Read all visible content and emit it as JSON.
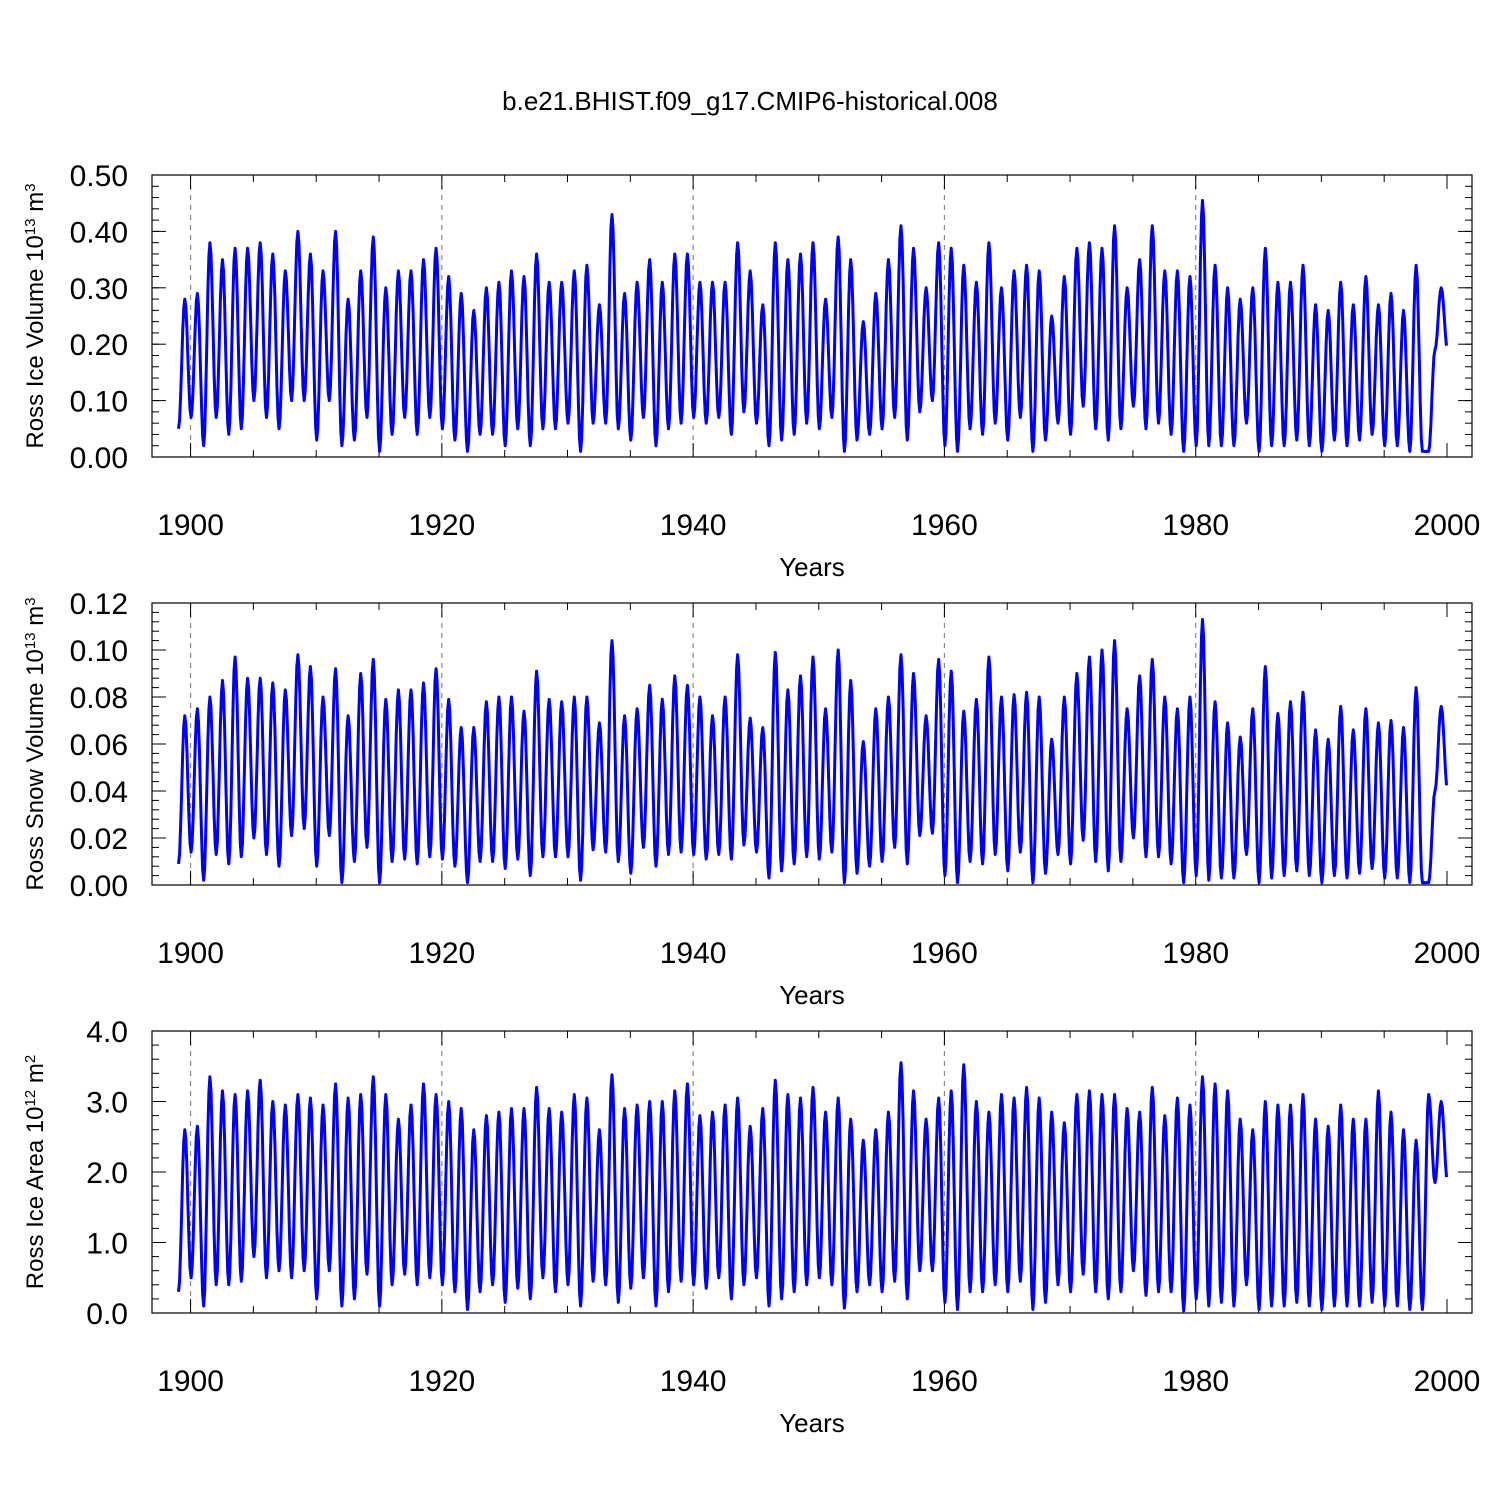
{
  "title": "b.e21.BHIST.f09_g17.CMIP6-historical.008",
  "chart_data": [
    {
      "type": "line",
      "ylabel": {
        "text": "Ross Ice Volume 10",
        "exp": "13",
        "unit": " m",
        "unit_exp": "3"
      },
      "xlabel": "Years",
      "xlim": [
        1899,
        2000
      ],
      "ylim": [
        0.0,
        0.5
      ],
      "xticks": [
        1900,
        1920,
        1940,
        1960,
        1980,
        2000
      ],
      "yticks": [
        "0.00",
        "0.10",
        "0.20",
        "0.30",
        "0.40",
        "0.50"
      ],
      "ytick_values": [
        0.0,
        0.1,
        0.2,
        0.3,
        0.4,
        0.5
      ],
      "minor_y_step": 0.02,
      "vgrid_years": [
        1900,
        1920,
        1940,
        1960,
        1980
      ],
      "series": [
        {
          "name": "Ross Ice Volume",
          "color": "#0000ff",
          "start_year": 1899,
          "base": 0.07,
          "peaks": [
            0.28,
            0.29,
            0.38,
            0.35,
            0.37,
            0.37,
            0.38,
            0.36,
            0.33,
            0.4,
            0.36,
            0.33,
            0.4,
            0.28,
            0.33,
            0.39,
            0.3,
            0.33,
            0.33,
            0.35,
            0.37,
            0.32,
            0.29,
            0.26,
            0.3,
            0.31,
            0.33,
            0.32,
            0.36,
            0.31,
            0.31,
            0.33,
            0.34,
            0.27,
            0.43,
            0.29,
            0.31,
            0.35,
            0.31,
            0.36,
            0.36,
            0.31,
            0.31,
            0.31,
            0.38,
            0.33,
            0.27,
            0.38,
            0.35,
            0.36,
            0.38,
            0.28,
            0.39,
            0.35,
            0.24,
            0.29,
            0.35,
            0.41,
            0.37,
            0.3,
            0.38,
            0.37,
            0.34,
            0.31,
            0.38,
            0.3,
            0.33,
            0.34,
            0.33,
            0.25,
            0.32,
            0.37,
            0.38,
            0.37,
            0.41,
            0.3,
            0.35,
            0.41,
            0.33,
            0.33,
            0.32,
            0.455,
            0.34,
            0.3,
            0.28,
            0.3,
            0.37,
            0.31,
            0.31,
            0.34,
            0.27,
            0.26,
            0.31,
            0.27,
            0.32,
            0.27,
            0.29,
            0.26,
            0.34,
            0.01,
            0.3
          ],
          "troughs": [
            0.05,
            0.07,
            0.02,
            0.07,
            0.04,
            0.05,
            0.1,
            0.07,
            0.05,
            0.1,
            0.1,
            0.03,
            0.1,
            0.02,
            0.03,
            0.07,
            0.01,
            0.04,
            0.07,
            0.04,
            0.07,
            0.05,
            0.03,
            0.01,
            0.04,
            0.04,
            0.02,
            0.05,
            0.02,
            0.05,
            0.05,
            0.06,
            0.01,
            0.06,
            0.06,
            0.05,
            0.03,
            0.07,
            0.02,
            0.05,
            0.06,
            0.07,
            0.06,
            0.07,
            0.04,
            0.08,
            0.06,
            0.02,
            0.03,
            0.04,
            0.06,
            0.05,
            0.07,
            0.01,
            0.03,
            0.04,
            0.05,
            0.07,
            0.03,
            0.08,
            0.1,
            0.02,
            0.01,
            0.05,
            0.04,
            0.06,
            0.03,
            0.07,
            0.01,
            0.03,
            0.06,
            0.04,
            0.09,
            0.05,
            0.03,
            0.05,
            0.09,
            0.05,
            0.06,
            0.04,
            0.01,
            0.02,
            0.02,
            0.02,
            0.02,
            0.06,
            0.01,
            0.02,
            0.02,
            0.03,
            0.02,
            0.01,
            0.03,
            0.02,
            0.03,
            0.04,
            0.02,
            0.02,
            0.01,
            0.01,
            0.19
          ]
        }
      ]
    },
    {
      "type": "line",
      "ylabel": {
        "text": "Ross Snow Volume 10",
        "exp": "13",
        "unit": " m",
        "unit_exp": "3"
      },
      "xlabel": "Years",
      "xlim": [
        1899,
        2000
      ],
      "ylim": [
        0.0,
        0.12
      ],
      "xticks": [
        1900,
        1920,
        1940,
        1960,
        1980,
        2000
      ],
      "yticks": [
        "0.00",
        "0.02",
        "0.04",
        "0.06",
        "0.08",
        "0.10",
        "0.12"
      ],
      "ytick_values": [
        0.0,
        0.02,
        0.04,
        0.06,
        0.08,
        0.1,
        0.12
      ],
      "minor_y_step": 0.004,
      "vgrid_years": [
        1900,
        1920,
        1940,
        1960,
        1980
      ],
      "series": [
        {
          "name": "Ross Snow Volume",
          "color": "#0000ff",
          "start_year": 1899,
          "base": 0.015,
          "peaks": [
            0.072,
            0.075,
            0.08,
            0.087,
            0.097,
            0.088,
            0.088,
            0.086,
            0.083,
            0.098,
            0.093,
            0.08,
            0.092,
            0.072,
            0.09,
            0.096,
            0.079,
            0.083,
            0.083,
            0.086,
            0.092,
            0.079,
            0.067,
            0.067,
            0.078,
            0.08,
            0.08,
            0.074,
            0.091,
            0.079,
            0.078,
            0.08,
            0.08,
            0.069,
            0.104,
            0.072,
            0.075,
            0.085,
            0.079,
            0.089,
            0.085,
            0.08,
            0.072,
            0.08,
            0.098,
            0.071,
            0.067,
            0.099,
            0.083,
            0.089,
            0.097,
            0.075,
            0.1,
            0.087,
            0.061,
            0.075,
            0.08,
            0.098,
            0.09,
            0.072,
            0.096,
            0.091,
            0.074,
            0.079,
            0.097,
            0.08,
            0.081,
            0.082,
            0.08,
            0.062,
            0.08,
            0.09,
            0.097,
            0.1,
            0.104,
            0.075,
            0.089,
            0.096,
            0.08,
            0.075,
            0.08,
            0.113,
            0.078,
            0.069,
            0.063,
            0.075,
            0.093,
            0.073,
            0.078,
            0.082,
            0.066,
            0.062,
            0.076,
            0.066,
            0.075,
            0.069,
            0.07,
            0.067,
            0.084,
            0.001,
            0.076
          ],
          "troughs": [
            0.009,
            0.014,
            0.002,
            0.013,
            0.009,
            0.012,
            0.02,
            0.013,
            0.008,
            0.021,
            0.024,
            0.008,
            0.021,
            0.001,
            0.01,
            0.016,
            0.001,
            0.01,
            0.011,
            0.009,
            0.012,
            0.011,
            0.008,
            0.001,
            0.01,
            0.01,
            0.007,
            0.011,
            0.004,
            0.012,
            0.012,
            0.012,
            0.002,
            0.015,
            0.014,
            0.01,
            0.005,
            0.016,
            0.008,
            0.013,
            0.014,
            0.013,
            0.011,
            0.013,
            0.011,
            0.017,
            0.014,
            0.003,
            0.006,
            0.009,
            0.012,
            0.011,
            0.014,
            0.001,
            0.005,
            0.008,
            0.01,
            0.016,
            0.009,
            0.021,
            0.022,
            0.004,
            0.001,
            0.01,
            0.009,
            0.013,
            0.006,
            0.014,
            0.001,
            0.005,
            0.013,
            0.009,
            0.019,
            0.01,
            0.006,
            0.01,
            0.02,
            0.012,
            0.012,
            0.009,
            0.001,
            0.004,
            0.002,
            0.003,
            0.003,
            0.013,
            0.001,
            0.003,
            0.004,
            0.006,
            0.004,
            0.001,
            0.004,
            0.003,
            0.005,
            0.007,
            0.003,
            0.003,
            0.001,
            0.001,
            0.04
          ]
        }
      ]
    },
    {
      "type": "line",
      "ylabel": {
        "text": "Ross Ice Area 10",
        "exp": "12",
        "unit": " m",
        "unit_exp": "2"
      },
      "xlabel": "Years",
      "xlim": [
        1899,
        2000
      ],
      "ylim": [
        0.0,
        4.0
      ],
      "xticks": [
        1900,
        1920,
        1940,
        1960,
        1980,
        2000
      ],
      "yticks": [
        "0.0",
        "1.0",
        "2.0",
        "3.0",
        "4.0"
      ],
      "ytick_values": [
        0.0,
        1.0,
        2.0,
        3.0,
        4.0
      ],
      "minor_y_step": 0.2,
      "vgrid_years": [
        1900,
        1920,
        1940,
        1960,
        1980
      ],
      "series": [
        {
          "name": "Ross Ice Area",
          "color": "#0000ff",
          "start_year": 1899,
          "base": 0.4,
          "peaks": [
            2.6,
            2.65,
            3.35,
            3.15,
            3.1,
            3.15,
            3.3,
            3.0,
            2.95,
            3.1,
            3.05,
            2.95,
            3.25,
            3.05,
            3.1,
            3.35,
            3.1,
            2.75,
            2.95,
            3.25,
            3.1,
            3.0,
            2.9,
            2.6,
            2.8,
            2.85,
            2.9,
            2.9,
            3.2,
            2.9,
            2.85,
            3.1,
            3.05,
            2.6,
            3.38,
            2.9,
            2.95,
            3.0,
            3.0,
            3.15,
            3.25,
            2.8,
            2.85,
            2.95,
            3.05,
            2.65,
            2.9,
            3.3,
            3.1,
            3.05,
            3.2,
            2.85,
            3.05,
            2.75,
            2.45,
            2.6,
            2.85,
            3.55,
            3.15,
            2.75,
            3.05,
            3.15,
            3.52,
            3.0,
            2.85,
            3.1,
            3.05,
            3.2,
            3.05,
            2.85,
            2.7,
            3.1,
            3.15,
            3.1,
            3.1,
            2.9,
            2.85,
            3.2,
            2.8,
            3.05,
            2.95,
            3.35,
            3.25,
            3.15,
            2.75,
            2.6,
            3.0,
            2.95,
            2.95,
            3.1,
            2.75,
            2.65,
            2.95,
            2.75,
            2.75,
            3.15,
            2.85,
            2.6,
            2.45,
            3.1,
            3.0
          ],
          "troughs": [
            0.3,
            0.5,
            0.1,
            0.4,
            0.4,
            0.45,
            0.8,
            0.5,
            0.6,
            0.5,
            0.6,
            0.2,
            0.6,
            0.1,
            0.2,
            0.55,
            0.1,
            0.4,
            0.55,
            0.4,
            0.5,
            0.4,
            0.3,
            0.05,
            0.3,
            0.4,
            0.15,
            0.35,
            0.2,
            0.5,
            0.3,
            0.4,
            0.1,
            0.45,
            0.4,
            0.15,
            0.35,
            0.5,
            0.1,
            0.3,
            0.45,
            0.4,
            0.35,
            0.5,
            0.2,
            0.4,
            0.5,
            0.1,
            0.2,
            0.3,
            0.4,
            0.5,
            0.4,
            0.07,
            0.3,
            0.4,
            0.3,
            0.45,
            0.2,
            0.6,
            0.6,
            0.15,
            0.05,
            0.3,
            0.3,
            0.4,
            0.3,
            0.45,
            0.05,
            0.15,
            0.4,
            0.3,
            0.55,
            0.3,
            0.2,
            0.3,
            0.6,
            0.25,
            0.3,
            0.3,
            0.03,
            0.2,
            0.1,
            0.15,
            0.1,
            0.4,
            0.05,
            0.1,
            0.1,
            0.15,
            0.1,
            0.05,
            0.1,
            0.1,
            0.1,
            0.15,
            0.1,
            0.1,
            0.05,
            0.05,
            1.85
          ]
        }
      ]
    }
  ]
}
